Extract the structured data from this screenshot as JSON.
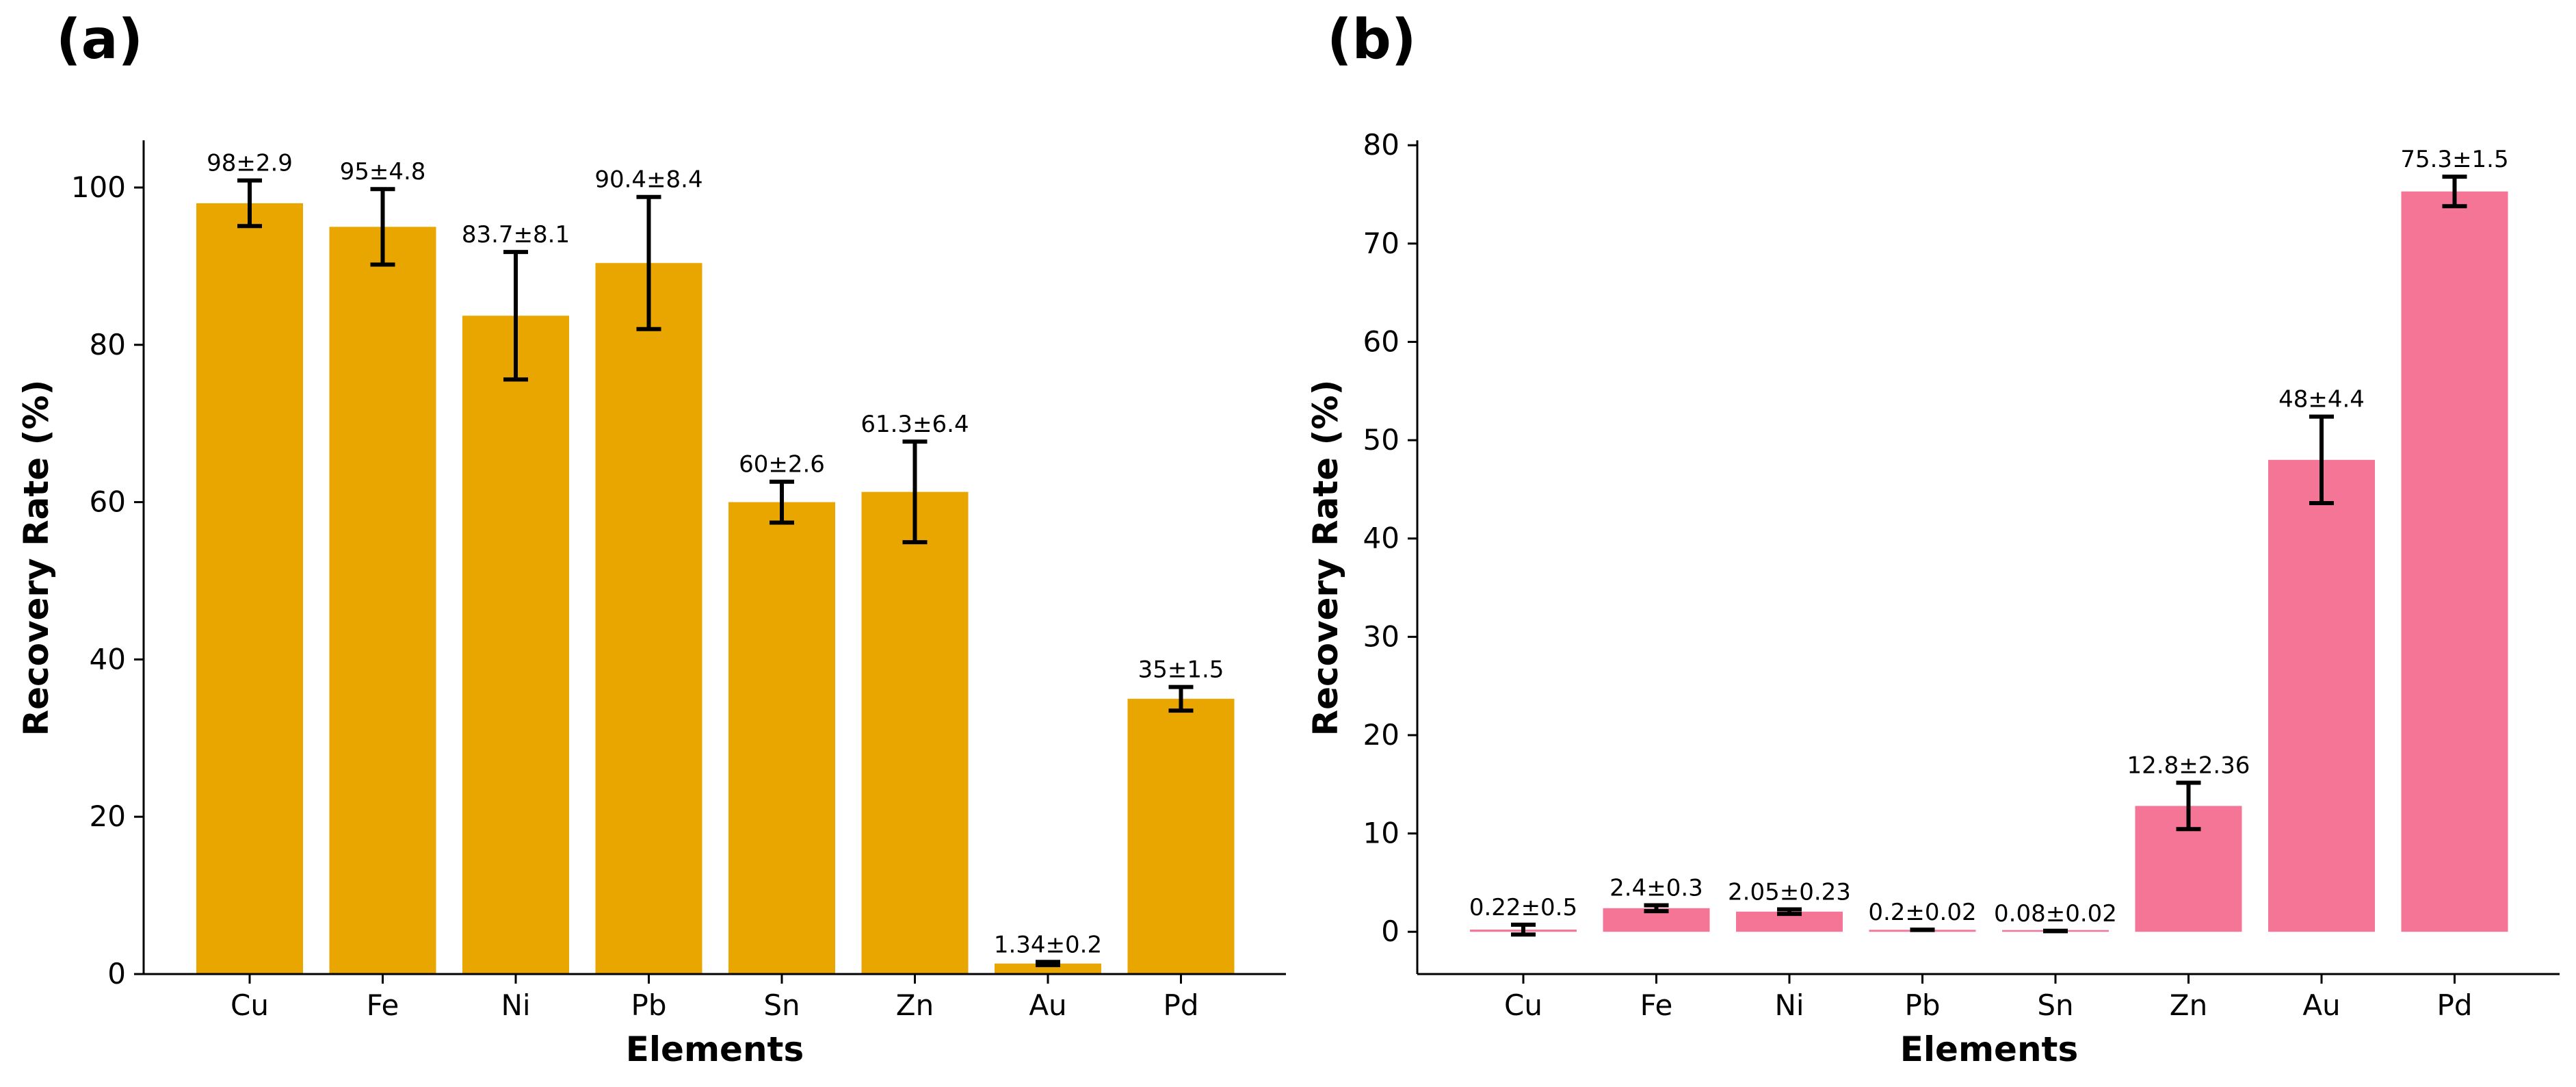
{
  "chart_data": [
    {
      "panel_label": "(a)",
      "type": "bar",
      "categories": [
        "Cu",
        "Fe",
        "Ni",
        "Pb",
        "Sn",
        "Zn",
        "Au",
        "Pd"
      ],
      "values": [
        98,
        95,
        83.7,
        90.4,
        60,
        61.3,
        1.34,
        35
      ],
      "errors": [
        2.9,
        4.8,
        8.1,
        8.4,
        2.6,
        6.4,
        0.2,
        1.5
      ],
      "data_labels": [
        "98±2.9",
        "95±4.8",
        "83.7±8.1",
        "90.4±8.4",
        "60±2.6",
        "61.3±6.4",
        "1.34±0.2",
        "35±1.5"
      ],
      "title": "",
      "xlabel": "Elements",
      "ylabel": "Recovery Rate (%)",
      "ylim": [
        0,
        106
      ],
      "yticks": [
        0,
        20,
        40,
        60,
        80,
        100
      ],
      "bar_color": "#E9A500",
      "grid": false,
      "legend": "none"
    },
    {
      "panel_label": "(b)",
      "type": "bar",
      "categories": [
        "Cu",
        "Fe",
        "Ni",
        "Pb",
        "Sn",
        "Zn",
        "Au",
        "Pd"
      ],
      "values": [
        0.22,
        2.4,
        2.05,
        0.2,
        0.08,
        12.8,
        48,
        75.3
      ],
      "errors": [
        0.5,
        0.3,
        0.23,
        0.02,
        0.02,
        2.36,
        4.4,
        1.5
      ],
      "data_labels": [
        "0.22±0.5",
        "2.4±0.3",
        "2.05±0.23",
        "0.2±0.02",
        "0.08±0.02",
        "12.8±2.36",
        "48±4.4",
        "75.3±1.5"
      ],
      "title": "",
      "xlabel": "Elements",
      "ylabel": "Recovery Rate (%)",
      "ylim": [
        -4.3,
        80.5
      ],
      "yticks": [
        0,
        10,
        20,
        30,
        40,
        50,
        60,
        70,
        80
      ],
      "bar_color": "#F47595",
      "grid": false,
      "legend": "none"
    }
  ]
}
